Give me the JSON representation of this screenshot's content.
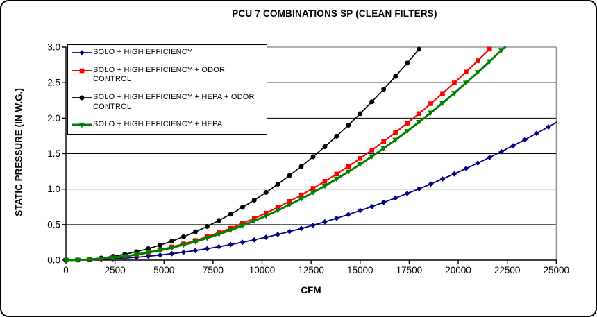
{
  "chart_data": {
    "type": "line",
    "title": "PCU 7 COMBINATIONS SP (CLEAN FILTERS)",
    "xlabel": "CFM",
    "ylabel": "STATIC PRESSURE (IN W.G.)",
    "xlim": [
      0,
      25000
    ],
    "ylim": [
      0.0,
      3.0
    ],
    "x_ticks": [
      0,
      2500,
      5000,
      7500,
      10000,
      12500,
      15000,
      17500,
      20000,
      22500,
      25000
    ],
    "y_tick_labels": [
      "0.0",
      "0.5",
      "1.0",
      "1.5",
      "2.0",
      "2.5",
      "3.0"
    ],
    "grid": "horizontal",
    "legend_position": "inside-top-left",
    "axis_color": "#000000",
    "plot_border_color": "#808080",
    "series": [
      {
        "name": "SOLO + HIGH EFFICIENCY",
        "color": "#000080",
        "marker": "diamond",
        "points": [
          [
            0,
            0
          ],
          [
            600,
            0.001
          ],
          [
            1200,
            0.004
          ],
          [
            1800,
            0.01
          ],
          [
            2400,
            0.018
          ],
          [
            3000,
            0.028
          ],
          [
            3600,
            0.04
          ],
          [
            4200,
            0.055
          ],
          [
            4800,
            0.071
          ],
          [
            5400,
            0.09
          ],
          [
            6000,
            0.112
          ],
          [
            6600,
            0.135
          ],
          [
            7200,
            0.161
          ],
          [
            7800,
            0.189
          ],
          [
            8400,
            0.219
          ],
          [
            9000,
            0.251
          ],
          [
            9600,
            0.286
          ],
          [
            10200,
            0.322
          ],
          [
            10800,
            0.362
          ],
          [
            11400,
            0.403
          ],
          [
            12000,
            0.446
          ],
          [
            12600,
            0.492
          ],
          [
            13200,
            0.54
          ],
          [
            13800,
            0.59
          ],
          [
            14400,
            0.643
          ],
          [
            15000,
            0.698
          ],
          [
            15600,
            0.754
          ],
          [
            16200,
            0.814
          ],
          [
            16800,
            0.875
          ],
          [
            17400,
            0.939
          ],
          [
            18000,
            1.004
          ],
          [
            18600,
            1.072
          ],
          [
            19200,
            1.143
          ],
          [
            19800,
            1.215
          ],
          [
            20400,
            1.29
          ],
          [
            21000,
            1.367
          ],
          [
            21600,
            1.446
          ],
          [
            22200,
            1.528
          ],
          [
            22800,
            1.611
          ],
          [
            23400,
            1.697
          ],
          [
            24000,
            1.786
          ],
          [
            24600,
            1.876
          ]
        ],
        "tail": [
          25000,
          1.94
        ]
      },
      {
        "name": "SOLO + HIGH EFFICIENCY + ODOR CONTROL",
        "color": "#FF0000",
        "marker": "square",
        "points": [
          [
            0,
            0
          ],
          [
            600,
            0.002
          ],
          [
            1200,
            0.009
          ],
          [
            1800,
            0.021
          ],
          [
            2400,
            0.037
          ],
          [
            3000,
            0.057
          ],
          [
            3600,
            0.083
          ],
          [
            4200,
            0.112
          ],
          [
            4800,
            0.147
          ],
          [
            5400,
            0.186
          ],
          [
            6000,
            0.229
          ],
          [
            6600,
            0.277
          ],
          [
            7200,
            0.33
          ],
          [
            7800,
            0.388
          ],
          [
            8400,
            0.449
          ],
          [
            9000,
            0.516
          ],
          [
            9600,
            0.587
          ],
          [
            10200,
            0.663
          ],
          [
            10800,
            0.743
          ],
          [
            11400,
            0.828
          ],
          [
            12000,
            0.917
          ],
          [
            12600,
            1.011
          ],
          [
            13200,
            1.11
          ],
          [
            13800,
            1.213
          ],
          [
            14400,
            1.321
          ],
          [
            15000,
            1.433
          ],
          [
            15600,
            1.55
          ],
          [
            16200,
            1.672
          ],
          [
            16800,
            1.798
          ],
          [
            17400,
            1.929
          ],
          [
            18000,
            2.064
          ],
          [
            18600,
            2.204
          ],
          [
            19200,
            2.348
          ],
          [
            19800,
            2.497
          ],
          [
            20400,
            2.651
          ],
          [
            21000,
            2.809
          ],
          [
            21600,
            2.972
          ]
        ],
        "tail": null
      },
      {
        "name": "SOLO + HIGH EFFICIENCY + HEPA + ODOR CONTROL",
        "color": "#000000",
        "marker": "circle",
        "points": [
          [
            0,
            0
          ],
          [
            600,
            0.003
          ],
          [
            1200,
            0.013
          ],
          [
            1800,
            0.03
          ],
          [
            2400,
            0.053
          ],
          [
            3000,
            0.083
          ],
          [
            3600,
            0.119
          ],
          [
            4200,
            0.162
          ],
          [
            4800,
            0.211
          ],
          [
            5400,
            0.267
          ],
          [
            6000,
            0.33
          ],
          [
            6600,
            0.399
          ],
          [
            7200,
            0.475
          ],
          [
            7800,
            0.558
          ],
          [
            8400,
            0.647
          ],
          [
            9000,
            0.743
          ],
          [
            9600,
            0.845
          ],
          [
            10200,
            0.954
          ],
          [
            10800,
            1.07
          ],
          [
            11400,
            1.192
          ],
          [
            12000,
            1.32
          ],
          [
            12600,
            1.456
          ],
          [
            13200,
            1.598
          ],
          [
            13800,
            1.746
          ],
          [
            14400,
            1.901
          ],
          [
            15000,
            2.063
          ],
          [
            15600,
            2.231
          ],
          [
            16200,
            2.407
          ],
          [
            16800,
            2.588
          ],
          [
            17400,
            2.776
          ],
          [
            18000,
            2.971
          ]
        ],
        "tail": null
      },
      {
        "name": "SOLO + HIGH EFFICIENCY + HEPA",
        "color": "#008000",
        "marker": "triangle",
        "points": [
          [
            0,
            0
          ],
          [
            600,
            0.002
          ],
          [
            1200,
            0.009
          ],
          [
            1800,
            0.019
          ],
          [
            2400,
            0.035
          ],
          [
            3000,
            0.054
          ],
          [
            3600,
            0.078
          ],
          [
            4200,
            0.106
          ],
          [
            4800,
            0.138
          ],
          [
            5400,
            0.175
          ],
          [
            6000,
            0.216
          ],
          [
            6600,
            0.261
          ],
          [
            7200,
            0.311
          ],
          [
            7800,
            0.365
          ],
          [
            8400,
            0.423
          ],
          [
            9000,
            0.486
          ],
          [
            9600,
            0.553
          ],
          [
            10200,
            0.624
          ],
          [
            10800,
            0.7
          ],
          [
            11400,
            0.78
          ],
          [
            12000,
            0.864
          ],
          [
            12600,
            0.953
          ],
          [
            13200,
            1.045
          ],
          [
            13800,
            1.143
          ],
          [
            14400,
            1.244
          ],
          [
            15000,
            1.35
          ],
          [
            15600,
            1.46
          ],
          [
            16200,
            1.575
          ],
          [
            16800,
            1.693
          ],
          [
            17400,
            1.816
          ],
          [
            18000,
            1.944
          ],
          [
            18600,
            2.076
          ],
          [
            19200,
            2.212
          ],
          [
            19800,
            2.352
          ],
          [
            20400,
            2.497
          ],
          [
            21000,
            2.646
          ],
          [
            21600,
            2.799
          ],
          [
            22200,
            2.957
          ]
        ],
        "tail": [
          22400,
          3.0
        ]
      }
    ]
  }
}
